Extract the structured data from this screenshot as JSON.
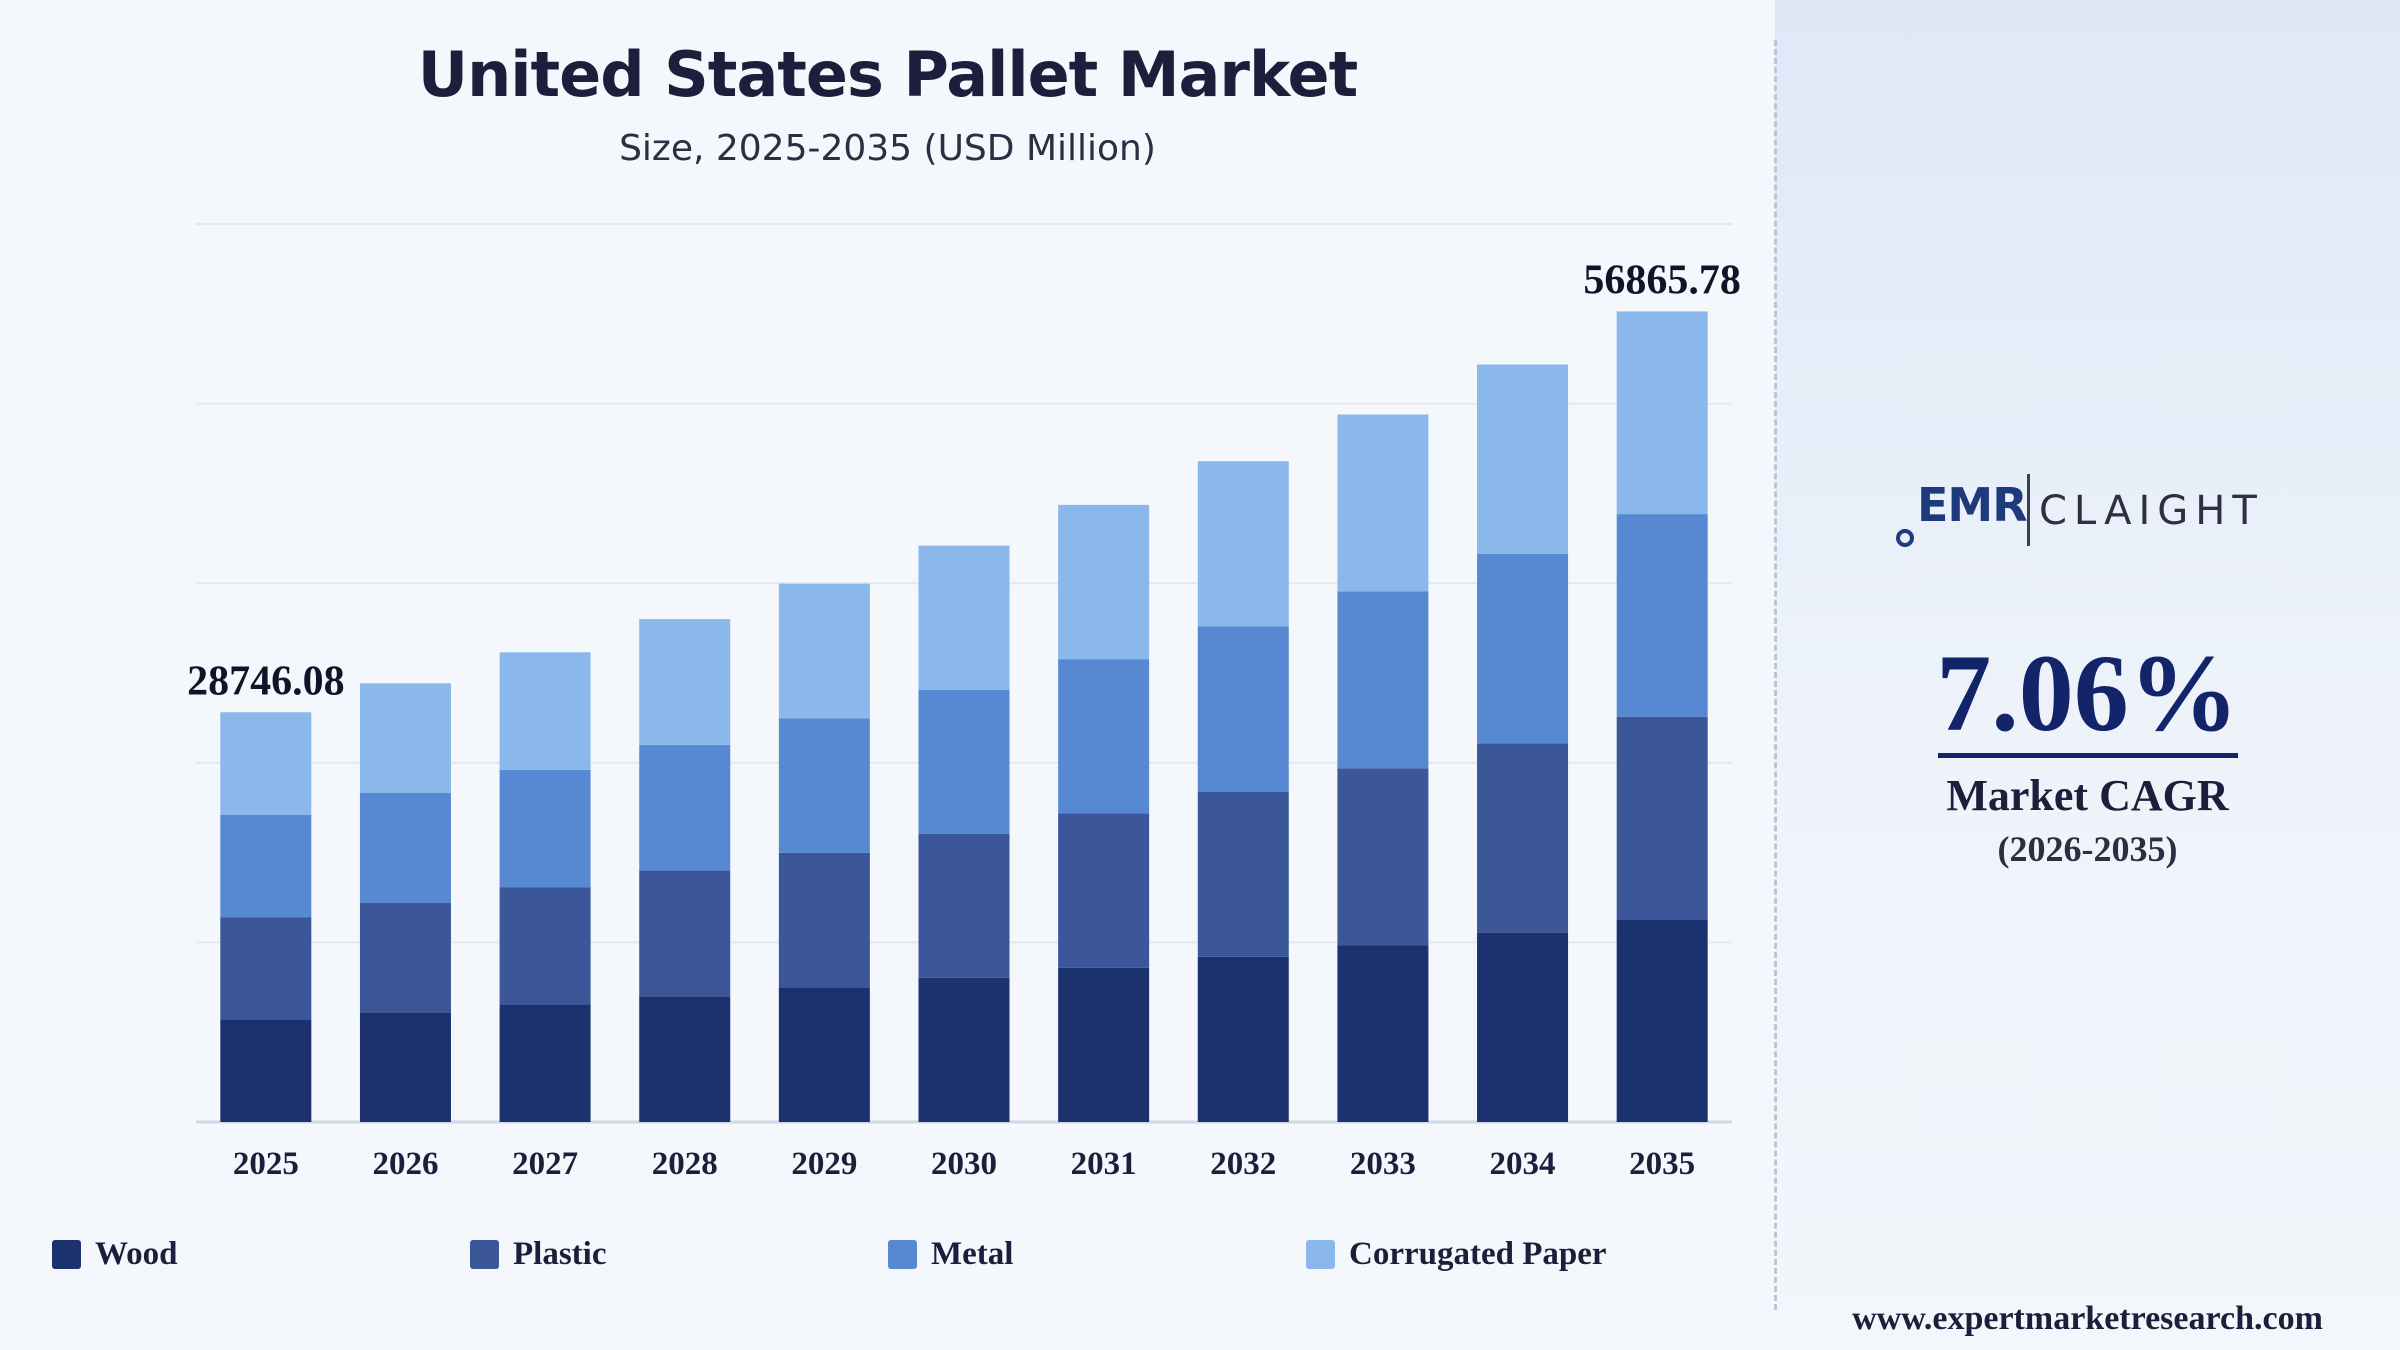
{
  "header": {
    "title": "United States Pallet Market",
    "subtitle": "Size, 2025-2035 (USD Million)"
  },
  "chart_data": {
    "type": "bar",
    "stacked": true,
    "title": "United States Pallet Market",
    "subtitle": "Size, 2025-2035 (USD Million)",
    "xlabel": "",
    "ylabel": "",
    "ylim": [
      0,
      63000
    ],
    "grid": true,
    "legend_position": "bottom",
    "categories": [
      "2025",
      "2026",
      "2027",
      "2028",
      "2029",
      "2030",
      "2031",
      "2032",
      "2033",
      "2034",
      "2035"
    ],
    "series": [
      {
        "name": "Wood",
        "color": "#1c326e",
        "values": [
          7186,
          7694,
          8238,
          8820,
          9443,
          10110,
          10824,
          11589,
          12408,
          13285,
          14216
        ]
      },
      {
        "name": "Plastic",
        "color": "#3b5799",
        "values": [
          7186,
          7694,
          8238,
          8820,
          9443,
          10110,
          10824,
          11589,
          12408,
          13285,
          14216
        ]
      },
      {
        "name": "Metal",
        "color": "#5789d2",
        "values": [
          7187,
          7695,
          8238,
          8820,
          9443,
          10110,
          10824,
          11590,
          12409,
          13285,
          14217
        ]
      },
      {
        "name": "Corrugated Paper",
        "color": "#8ab8ea",
        "values": [
          7187,
          7695,
          8238,
          8820,
          9443,
          10110,
          10824,
          11590,
          12409,
          13285,
          14217
        ]
      }
    ],
    "annotations": [
      {
        "category": "2025",
        "text": "28746.08"
      },
      {
        "category": "2035",
        "text": "56865.78"
      }
    ]
  },
  "logo": {
    "left": "EMR",
    "right": "CLAIGHT"
  },
  "cagr": {
    "value": "7.06%",
    "label": "Market CAGR",
    "period": "(2026-2035)"
  },
  "footer": {
    "website": "www.expertmarketresearch.com"
  }
}
